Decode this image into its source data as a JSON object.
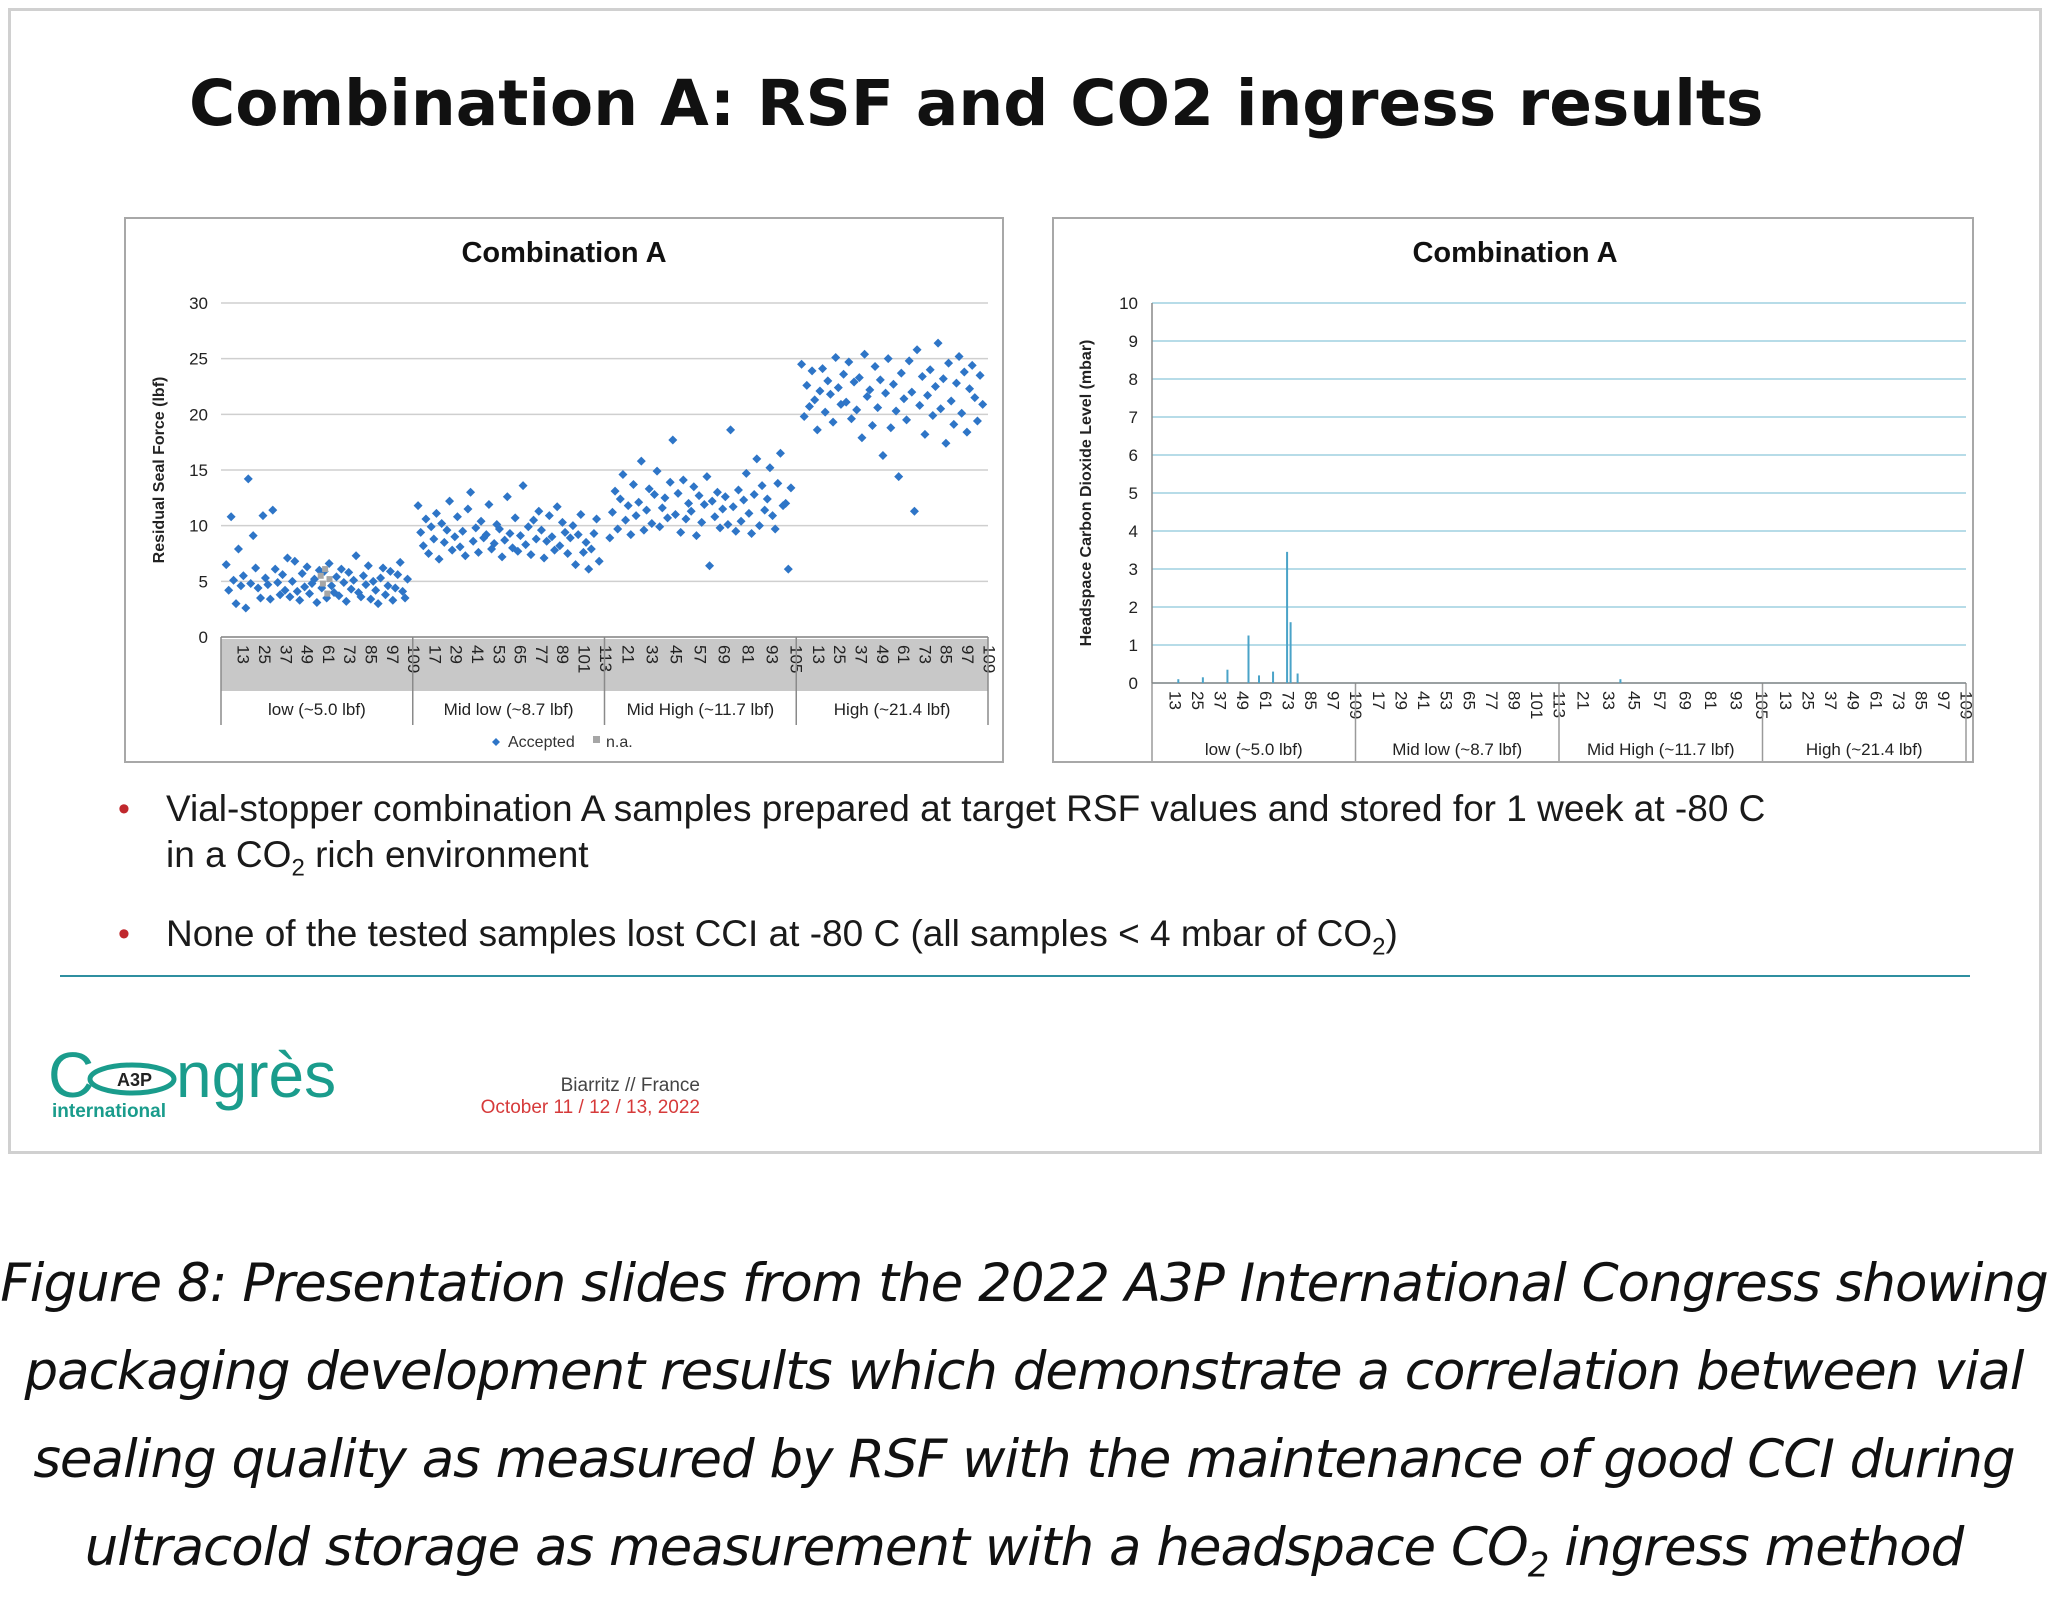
{
  "slide": {
    "title": "Combination A:  RSF and CO2 ingress results",
    "bullets": [
      {
        "pre": "Vial-stopper combination A samples prepared at target RSF values and stored for 1 week at -80 C",
        "line2_pre": "in a CO",
        "sub": "2",
        "post": " rich environment"
      },
      {
        "pre": "None of the tested samples lost CCI at -80 C (all samples < 4 mbar of CO",
        "sub": "2",
        "post": ")"
      }
    ],
    "logo": {
      "word_pre": "C",
      "word_post": "ngrès",
      "sub": "international",
      "badge": "A3P"
    },
    "event": {
      "city": "Biarritz // France",
      "dates": "October 11 / 12 / 13, 2022"
    }
  },
  "caption": {
    "line1": "Figure 8: Presentation slides from the 2022 A3P International Congress showing",
    "line2": "packaging development results which demonstrate a correlation between vial",
    "line3": "sealing quality as measured by RSF with the maintenance of good CCI during",
    "line4_pre": "ultracold storage as measurement with a headspace CO",
    "line4_sub": "2",
    "line4_post": " ingress method"
  },
  "colors": {
    "accepted": "#2e75c7",
    "na": "#a6a6a6",
    "co2_line": "#4aa3c8",
    "grid_blue": "#9fd0e0",
    "bullet": "#c0282d",
    "logo_green": "#1a9c8c"
  },
  "chart_data": [
    {
      "type": "scatter",
      "title": "Combination A",
      "ylabel": "Residual Seal Force (lbf)",
      "ylim": [
        0,
        30
      ],
      "yticks": [
        0,
        5,
        10,
        15,
        20,
        25,
        30
      ],
      "xtick_labels": [
        "13",
        "25",
        "37",
        "49",
        "61",
        "73",
        "85",
        "97",
        "109"
      ],
      "groups": [
        "low (~5.0 lbf)",
        "Mid low (~8.7 lbf)",
        "Mid High (~11.7 lbf)",
        "High (~21.4 lbf)"
      ],
      "group_xtick_labels": [
        [
          "13",
          "25",
          "37",
          "49",
          "61",
          "73",
          "85",
          "97",
          "109"
        ],
        [
          "17",
          "29",
          "41",
          "53",
          "65",
          "77",
          "89",
          "101",
          "113"
        ],
        [
          "21",
          "33",
          "45",
          "57",
          "69",
          "81",
          "93",
          "105"
        ],
        [
          "13",
          "25",
          "37",
          "49",
          "61",
          "73",
          "85",
          "97",
          "109"
        ]
      ],
      "legend": [
        "Accepted",
        "n.a."
      ],
      "series": [
        {
          "name": "Accepted",
          "group": "low (~5.0 lbf)",
          "values": [
            6.5,
            4.2,
            10.8,
            5.1,
            3.0,
            7.9,
            4.6,
            5.5,
            2.6,
            14.2,
            4.8,
            9.1,
            6.2,
            4.4,
            3.5,
            10.9,
            5.3,
            4.7,
            3.4,
            11.4,
            6.1,
            4.9,
            3.8,
            5.6,
            4.2,
            7.1,
            3.6,
            5.0,
            6.8,
            4.1,
            3.3,
            5.7,
            4.5,
            6.3,
            3.9,
            4.8,
            5.2,
            3.1,
            6.0,
            4.4,
            5.9,
            3.5,
            6.6,
            4.6,
            4.0,
            5.4,
            3.7,
            6.1,
            4.9,
            3.2,
            5.8,
            4.3,
            5.1,
            7.3,
            4.0,
            3.6,
            5.5,
            4.7,
            6.4,
            3.4,
            5.0,
            4.2,
            3.0,
            5.3,
            6.2,
            3.8,
            4.6,
            5.9,
            3.3,
            4.4,
            5.6,
            6.7,
            4.1,
            3.5,
            5.2
          ]
        },
        {
          "name": "Accepted",
          "group": "Mid low (~8.7 lbf)",
          "values": [
            11.8,
            9.4,
            8.2,
            10.6,
            7.5,
            9.9,
            8.8,
            11.1,
            7.0,
            10.2,
            8.5,
            9.6,
            12.2,
            7.8,
            9.0,
            10.8,
            8.1,
            9.5,
            7.3,
            11.5,
            13.0,
            8.6,
            9.8,
            7.6,
            10.4,
            8.9,
            9.2,
            11.9,
            7.9,
            8.4,
            10.1,
            9.7,
            7.2,
            8.7,
            12.6,
            9.3,
            8.0,
            10.7,
            7.7,
            9.1,
            13.6,
            8.3,
            9.9,
            7.4,
            10.5,
            8.8,
            11.3,
            9.6,
            7.1,
            8.6,
            10.9,
            9.0,
            7.8,
            11.7,
            8.2,
            10.3,
            9.4,
            7.5,
            8.9,
            10.0,
            6.5,
            9.2,
            11.0,
            7.6,
            8.5,
            6.1,
            7.9,
            9.3,
            10.6,
            6.8
          ]
        },
        {
          "name": "Accepted",
          "group": "Mid High (~11.7 lbf)",
          "values": [
            8.9,
            11.2,
            13.1,
            9.7,
            12.4,
            14.6,
            10.5,
            11.8,
            9.2,
            13.7,
            10.9,
            12.1,
            15.8,
            9.6,
            11.4,
            13.3,
            10.2,
            12.8,
            14.9,
            9.9,
            11.6,
            12.5,
            10.7,
            13.9,
            17.7,
            11.0,
            12.9,
            9.4,
            14.1,
            10.6,
            12.0,
            11.3,
            13.5,
            9.1,
            12.7,
            10.3,
            11.9,
            14.4,
            6.4,
            12.2,
            10.8,
            13.0,
            9.8,
            11.5,
            12.6,
            10.1,
            18.6,
            11.7,
            9.5,
            13.2,
            10.4,
            12.3,
            14.7,
            11.1,
            9.3,
            12.8,
            16.0,
            10.0,
            13.6,
            11.4,
            12.4,
            15.2,
            10.9,
            9.7,
            13.8,
            16.5,
            11.8,
            12.0,
            6.1,
            13.4
          ]
        },
        {
          "name": "Accepted",
          "group": "High (~21.4 lbf)",
          "values": [
            24.5,
            19.8,
            22.6,
            20.7,
            23.9,
            21.3,
            18.6,
            22.1,
            24.1,
            20.2,
            23.0,
            21.8,
            19.3,
            25.1,
            22.4,
            20.9,
            23.6,
            21.1,
            24.7,
            19.6,
            22.9,
            20.4,
            23.3,
            17.9,
            25.4,
            21.6,
            22.2,
            19.0,
            24.3,
            20.6,
            23.1,
            16.3,
            21.9,
            25.0,
            18.8,
            22.7,
            20.3,
            14.4,
            23.7,
            21.4,
            19.5,
            24.8,
            22.0,
            11.3,
            25.8,
            20.8,
            23.4,
            18.2,
            21.7,
            24.0,
            19.9,
            22.5,
            26.4,
            20.5,
            23.2,
            17.4,
            24.6,
            21.2,
            19.1,
            22.8,
            25.2,
            20.1,
            23.8,
            18.4,
            22.3,
            24.4,
            21.5,
            19.4,
            23.5,
            20.9
          ]
        },
        {
          "name": "n.a.",
          "group": "low (~5.0 lbf)",
          "values": [
            5.5,
            4.8,
            6.1,
            3.9,
            5.2
          ]
        }
      ]
    },
    {
      "type": "bar",
      "title": "Combination A",
      "ylabel": "Headspace Carbon Dioxide Level (mbar)",
      "ylim": [
        0,
        10
      ],
      "yticks": [
        0,
        1,
        2,
        3,
        4,
        5,
        6,
        7,
        8,
        9,
        10
      ],
      "groups": [
        "low (~5.0 lbf)",
        "Mid low (~8.7 lbf)",
        "Mid High (~11.7 lbf)",
        "High (~21.4 lbf)"
      ],
      "group_xtick_labels": [
        [
          "13",
          "25",
          "37",
          "49",
          "61",
          "73",
          "85",
          "97",
          "109"
        ],
        [
          "17",
          "29",
          "41",
          "53",
          "65",
          "77",
          "89",
          "101",
          "113"
        ],
        [
          "21",
          "33",
          "45",
          "57",
          "69",
          "81",
          "93",
          "105"
        ],
        [
          "13",
          "25",
          "37",
          "49",
          "61",
          "73",
          "85",
          "97",
          "109"
        ]
      ],
      "samples_per_group": 58,
      "nonzero_values": [
        {
          "group": 0,
          "index": 7,
          "value": 0.1
        },
        {
          "group": 0,
          "index": 14,
          "value": 0.15
        },
        {
          "group": 0,
          "index": 21,
          "value": 0.35
        },
        {
          "group": 0,
          "index": 27,
          "value": 1.25
        },
        {
          "group": 0,
          "index": 30,
          "value": 0.2
        },
        {
          "group": 0,
          "index": 34,
          "value": 0.3
        },
        {
          "group": 0,
          "index": 38,
          "value": 3.45
        },
        {
          "group": 0,
          "index": 39,
          "value": 1.6
        },
        {
          "group": 0,
          "index": 41,
          "value": 0.25
        },
        {
          "group": 2,
          "index": 17,
          "value": 0.1
        }
      ]
    }
  ]
}
